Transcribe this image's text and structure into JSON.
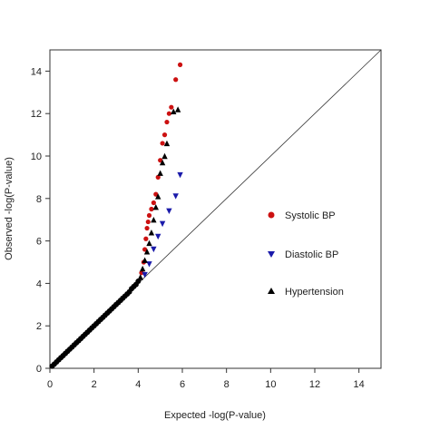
{
  "chart_data": {
    "type": "scatter",
    "title": "",
    "xlabel": "Expected -log(P-value)",
    "ylabel": "Observed -log(P-value)",
    "xlim": [
      0,
      15
    ],
    "ylim": [
      0,
      15
    ],
    "xticks": [
      0,
      2,
      4,
      6,
      8,
      10,
      12,
      14
    ],
    "yticks": [
      0,
      2,
      4,
      6,
      8,
      10,
      12,
      14
    ],
    "reference_line": {
      "from": [
        0,
        0
      ],
      "to": [
        15,
        15
      ]
    },
    "grid": false,
    "legend_placement": "right",
    "series": [
      {
        "name": "Systolic BP",
        "color": "#cc1111",
        "marker": "circle",
        "points": [
          [
            4.15,
            4.5
          ],
          [
            4.25,
            5.0
          ],
          [
            4.3,
            5.6
          ],
          [
            4.35,
            6.1
          ],
          [
            4.4,
            6.6
          ],
          [
            4.45,
            6.9
          ],
          [
            4.5,
            7.2
          ],
          [
            4.6,
            7.5
          ],
          [
            4.7,
            7.8
          ],
          [
            4.8,
            8.2
          ],
          [
            4.9,
            9.0
          ],
          [
            5.0,
            9.8
          ],
          [
            5.1,
            10.6
          ],
          [
            5.2,
            11.0
          ],
          [
            5.3,
            11.6
          ],
          [
            5.4,
            12.0
          ],
          [
            5.5,
            12.3
          ],
          [
            5.7,
            13.6
          ],
          [
            5.9,
            14.3
          ]
        ]
      },
      {
        "name": "Diastolic BP",
        "color": "#1a1aaa",
        "marker": "triangle-down",
        "points": [
          [
            4.3,
            4.4
          ],
          [
            4.5,
            4.9
          ],
          [
            4.7,
            5.6
          ],
          [
            4.9,
            6.2
          ],
          [
            5.1,
            6.8
          ],
          [
            5.4,
            7.4
          ],
          [
            5.7,
            8.1
          ],
          [
            5.9,
            9.1
          ]
        ]
      },
      {
        "name": "Hypertension",
        "color": "#000000",
        "marker": "triangle-up",
        "points": [
          [
            4.1,
            4.3
          ],
          [
            4.2,
            4.7
          ],
          [
            4.3,
            5.1
          ],
          [
            4.4,
            5.5
          ],
          [
            4.5,
            5.9
          ],
          [
            4.6,
            6.4
          ],
          [
            4.7,
            7.0
          ],
          [
            4.8,
            7.6
          ],
          [
            4.9,
            8.1
          ],
          [
            5.0,
            9.2
          ],
          [
            5.1,
            9.7
          ],
          [
            5.2,
            10.0
          ],
          [
            5.3,
            10.6
          ],
          [
            5.6,
            12.1
          ],
          [
            5.8,
            12.2
          ]
        ]
      }
    ],
    "baseline_series": {
      "name": "",
      "color": "#000000",
      "points": [
        [
          0.1,
          0.1
        ],
        [
          0.2,
          0.2
        ],
        [
          0.3,
          0.3
        ],
        [
          0.4,
          0.4
        ],
        [
          0.5,
          0.5
        ],
        [
          0.6,
          0.6
        ],
        [
          0.7,
          0.7
        ],
        [
          0.8,
          0.8
        ],
        [
          0.9,
          0.9
        ],
        [
          1.0,
          1.0
        ],
        [
          1.1,
          1.1
        ],
        [
          1.2,
          1.2
        ],
        [
          1.3,
          1.3
        ],
        [
          1.4,
          1.4
        ],
        [
          1.5,
          1.5
        ],
        [
          1.6,
          1.6
        ],
        [
          1.7,
          1.7
        ],
        [
          1.8,
          1.8
        ],
        [
          1.9,
          1.9
        ],
        [
          2.0,
          2.0
        ],
        [
          2.1,
          2.1
        ],
        [
          2.2,
          2.2
        ],
        [
          2.3,
          2.3
        ],
        [
          2.4,
          2.4
        ],
        [
          2.5,
          2.5
        ],
        [
          2.6,
          2.6
        ],
        [
          2.7,
          2.7
        ],
        [
          2.8,
          2.8
        ],
        [
          2.9,
          2.9
        ],
        [
          3.0,
          3.0
        ],
        [
          3.1,
          3.1
        ],
        [
          3.2,
          3.2
        ],
        [
          3.3,
          3.3
        ],
        [
          3.4,
          3.4
        ],
        [
          3.5,
          3.5
        ],
        [
          3.6,
          3.6
        ],
        [
          3.7,
          3.75
        ],
        [
          3.8,
          3.85
        ],
        [
          3.9,
          3.95
        ],
        [
          4.0,
          4.1
        ]
      ]
    }
  }
}
